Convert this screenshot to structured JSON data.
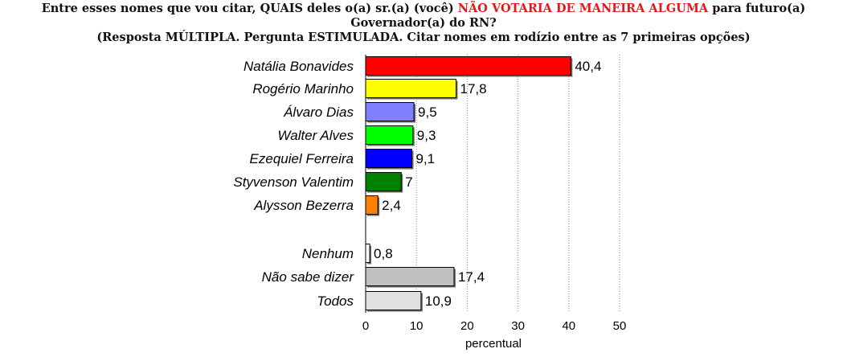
{
  "title": {
    "line1_pre": "Entre esses nomes que vou citar, QUAIS deles o(a) sr.(a) (você) ",
    "line1_highlight": "NÃO VOTARIA DE MANEIRA ALGUMA",
    "line1_post": " para futuro(a) Governador(a) do RN?",
    "line2": "(Resposta MÚLTIPLA. Pergunta ESTIMULADA. Citar nomes em rodízio entre as 7 primeiras opções)",
    "highlight_color": "#e3191c"
  },
  "chart_data": {
    "type": "bar",
    "orientation": "horizontal",
    "categories": [
      "Natália Bonavides",
      "Rogério Marinho",
      "Álvaro Dias",
      "Walter Alves",
      "Ezequiel Ferreira",
      "Styvenson Valentim",
      "Alysson Bezerra",
      "Nenhum",
      "Não sabe dizer",
      "Todos"
    ],
    "values": [
      40.4,
      17.8,
      9.5,
      9.3,
      9.1,
      7,
      2.4,
      0.8,
      17.4,
      10.9
    ],
    "value_labels": [
      "40,4",
      "17,8",
      "9,5",
      "9,3",
      "9,1",
      "7",
      "2,4",
      "0,8",
      "17,4",
      "10,9"
    ],
    "colors": [
      "#ff0000",
      "#ffff00",
      "#8080ff",
      "#00ff00",
      "#0000ff",
      "#008000",
      "#ff8000",
      "#ffffff",
      "#c0c0c0",
      "#e0e0e0"
    ],
    "xlim": [
      0,
      50
    ],
    "xticks": [
      0,
      10,
      20,
      30,
      40,
      50
    ],
    "xlabel": "percentual",
    "grid": "vertical dotted"
  }
}
